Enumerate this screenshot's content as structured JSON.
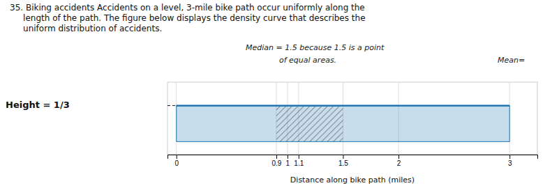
{
  "chart_data": {
    "type": "area",
    "title": [
      "35. Biking accidents Accidents on a level, 3-mile bike path occur uniformly along the",
      "     length of the path. The figure below displays the density curve that describes the",
      "     uniform distribution of accidents."
    ],
    "x_label": "Distance along bike path (miles)",
    "x": [
      0,
      3
    ],
    "values": [
      0.3333,
      0.3333
    ],
    "shaded_x": [
      0.9,
      1.5
    ],
    "xlim": [
      -0.08,
      3.25
    ],
    "xticks": [
      0,
      0.9,
      1,
      1.1,
      1.5,
      2,
      3
    ],
    "ylim": [
      -0.12,
      0.55
    ],
    "yticks": [],
    "tick_labels": "x",
    "grid": true,
    "annotations": [
      {
        "text": "Height = 1/3",
        "y": 0.3333
      },
      {
        "text": "Median = 1.5 because 1.5 is a point"
      },
      {
        "text": "of equal areas."
      },
      {
        "text": "Mean="
      }
    ]
  }
}
